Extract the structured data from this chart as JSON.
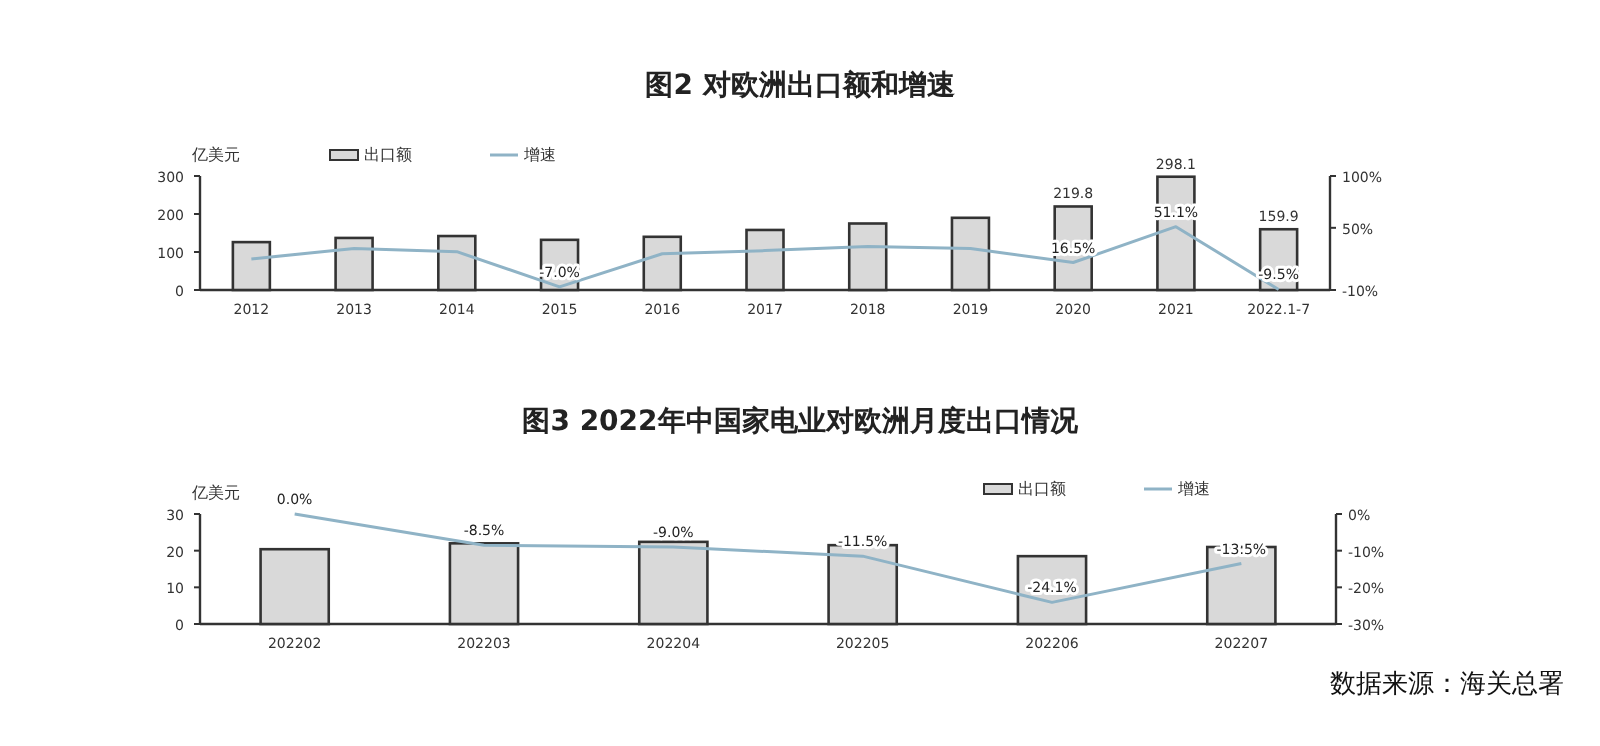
{
  "chart_data": [
    {
      "type": "bar",
      "title": "图2  对欧洲出口额和增速",
      "ylabel": "亿美元",
      "legend": "top",
      "categories": [
        "2012",
        "2013",
        "2014",
        "2015",
        "2016",
        "2017",
        "2018",
        "2019",
        "2020",
        "2021",
        "2022.1-7"
      ],
      "series": [
        {
          "name": "出口额",
          "color": "#d9d9d9",
          "values": [
            126,
            137,
            142,
            132,
            140,
            158,
            175,
            190,
            219.8,
            298.1,
            159.9
          ],
          "value_labels": [
            null,
            null,
            null,
            null,
            null,
            null,
            null,
            null,
            "219.8",
            "298.1",
            "159.9"
          ]
        },
        {
          "name": "增速",
          "type": "line",
          "axis": "y2",
          "color": "#8fb3c6",
          "values": [
            20,
            30,
            27,
            -7.0,
            25,
            28,
            32,
            30,
            16.5,
            51.1,
            -9.5
          ],
          "value_labels": [
            null,
            null,
            null,
            "-7.0%",
            null,
            null,
            null,
            null,
            "16.5%",
            "51.1%",
            "-9.5%"
          ]
        }
      ],
      "ylim": [
        0,
        300
      ],
      "yticks": [
        0,
        100,
        200,
        300
      ],
      "y2lim": [
        -10,
        100
      ],
      "y2ticks": [
        {
          "value": -10,
          "label": "-10%"
        },
        {
          "value": 50,
          "label": "50%"
        },
        {
          "value": 100,
          "label": "100%"
        }
      ]
    },
    {
      "type": "bar",
      "title": "图3  2022年中国家电业对欧洲月度出口情况",
      "ylabel": "亿美元",
      "legend": "top right",
      "categories": [
        "202202",
        "202203",
        "202204",
        "202205",
        "202206",
        "202207"
      ],
      "series": [
        {
          "name": "出口额",
          "color": "#d9d9d9",
          "values": [
            20.4,
            22.0,
            22.4,
            21.5,
            18.5,
            21.0
          ]
        },
        {
          "name": "增速",
          "type": "line",
          "axis": "y2",
          "color": "#8fb3c6",
          "values": [
            0.0,
            -8.5,
            -9.0,
            -11.5,
            -24.1,
            -13.5
          ],
          "value_labels": [
            "0.0%",
            "-8.5%",
            "-9.0%",
            "-11.5%",
            "-24.1%",
            "-13.5%"
          ]
        }
      ],
      "ylim": [
        0,
        30
      ],
      "yticks": [
        0,
        10,
        20,
        30
      ],
      "y2lim": [
        -30,
        0
      ],
      "y2ticks": [
        {
          "value": 0,
          "label": "0%"
        },
        {
          "value": -10,
          "label": "-10%"
        },
        {
          "value": -20,
          "label": "-20%"
        },
        {
          "value": -30,
          "label": "-30%"
        }
      ],
      "annotations": [
        "数据来源：海关总署"
      ]
    }
  ]
}
